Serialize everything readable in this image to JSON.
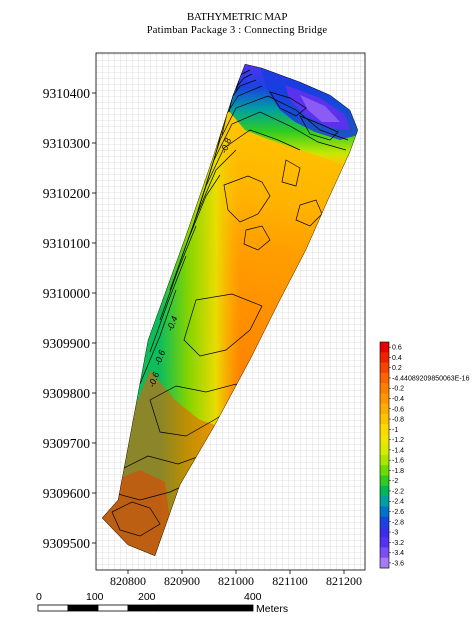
{
  "title": "BATHYMETRIC MAP",
  "subtitle": "Patimban Package 3 : Connecting Bridge",
  "y_axis": {
    "ticks": [
      "9310400",
      "9310300",
      "9310200",
      "9310100",
      "9310000",
      "9309900",
      "9309800",
      "9309700",
      "9309600",
      "9309500"
    ],
    "values": [
      9310400,
      9310300,
      9310200,
      9310100,
      9310000,
      9309900,
      9309800,
      9309700,
      9309600,
      9309500
    ]
  },
  "x_axis": {
    "ticks": [
      "820800",
      "820900",
      "821000",
      "821100",
      "821200"
    ],
    "values": [
      820800,
      820900,
      821000,
      821100,
      821200
    ]
  },
  "legend": {
    "labels": [
      "0.6",
      "0.4",
      "0.2",
      "-4.44089209850063E-16",
      "-0.2",
      "-0.4",
      "-0.6",
      "-0.8",
      "-1",
      "-1.2",
      "-1.4",
      "-1.6",
      "-1.8",
      "-2",
      "-2.2",
      "-2.4",
      "-2.6",
      "-2.8",
      "-3",
      "-3.2",
      "-3.4",
      "-3.6"
    ],
    "colors": [
      "#e60000",
      "#ee2200",
      "#f54400",
      "#fb6400",
      "#ff7d00",
      "#ff9600",
      "#ffac00",
      "#ffc200",
      "#ffd800",
      "#f0e400",
      "#d4ec00",
      "#a8e800",
      "#6cdc00",
      "#2ecc20",
      "#00b858",
      "#00a0a0",
      "#0074c8",
      "#1a44e0",
      "#3a2ee8",
      "#5530f0",
      "#7c4cf4",
      "#a47cf8"
    ]
  },
  "contour_labels": [
    "-0.8",
    "-0.4",
    "-0.6",
    "-0.6"
  ],
  "scale_bar": {
    "ticks": [
      "0",
      "100",
      "200",
      "400"
    ],
    "unit": "Meters"
  },
  "map_colors": {
    "frame_bg": "#ffffff",
    "grid": "#c8c8c8",
    "contour": "#000000",
    "deep_green": "#2ecc20",
    "blue": "#1a44e0",
    "purple": "#6a3cf0"
  }
}
